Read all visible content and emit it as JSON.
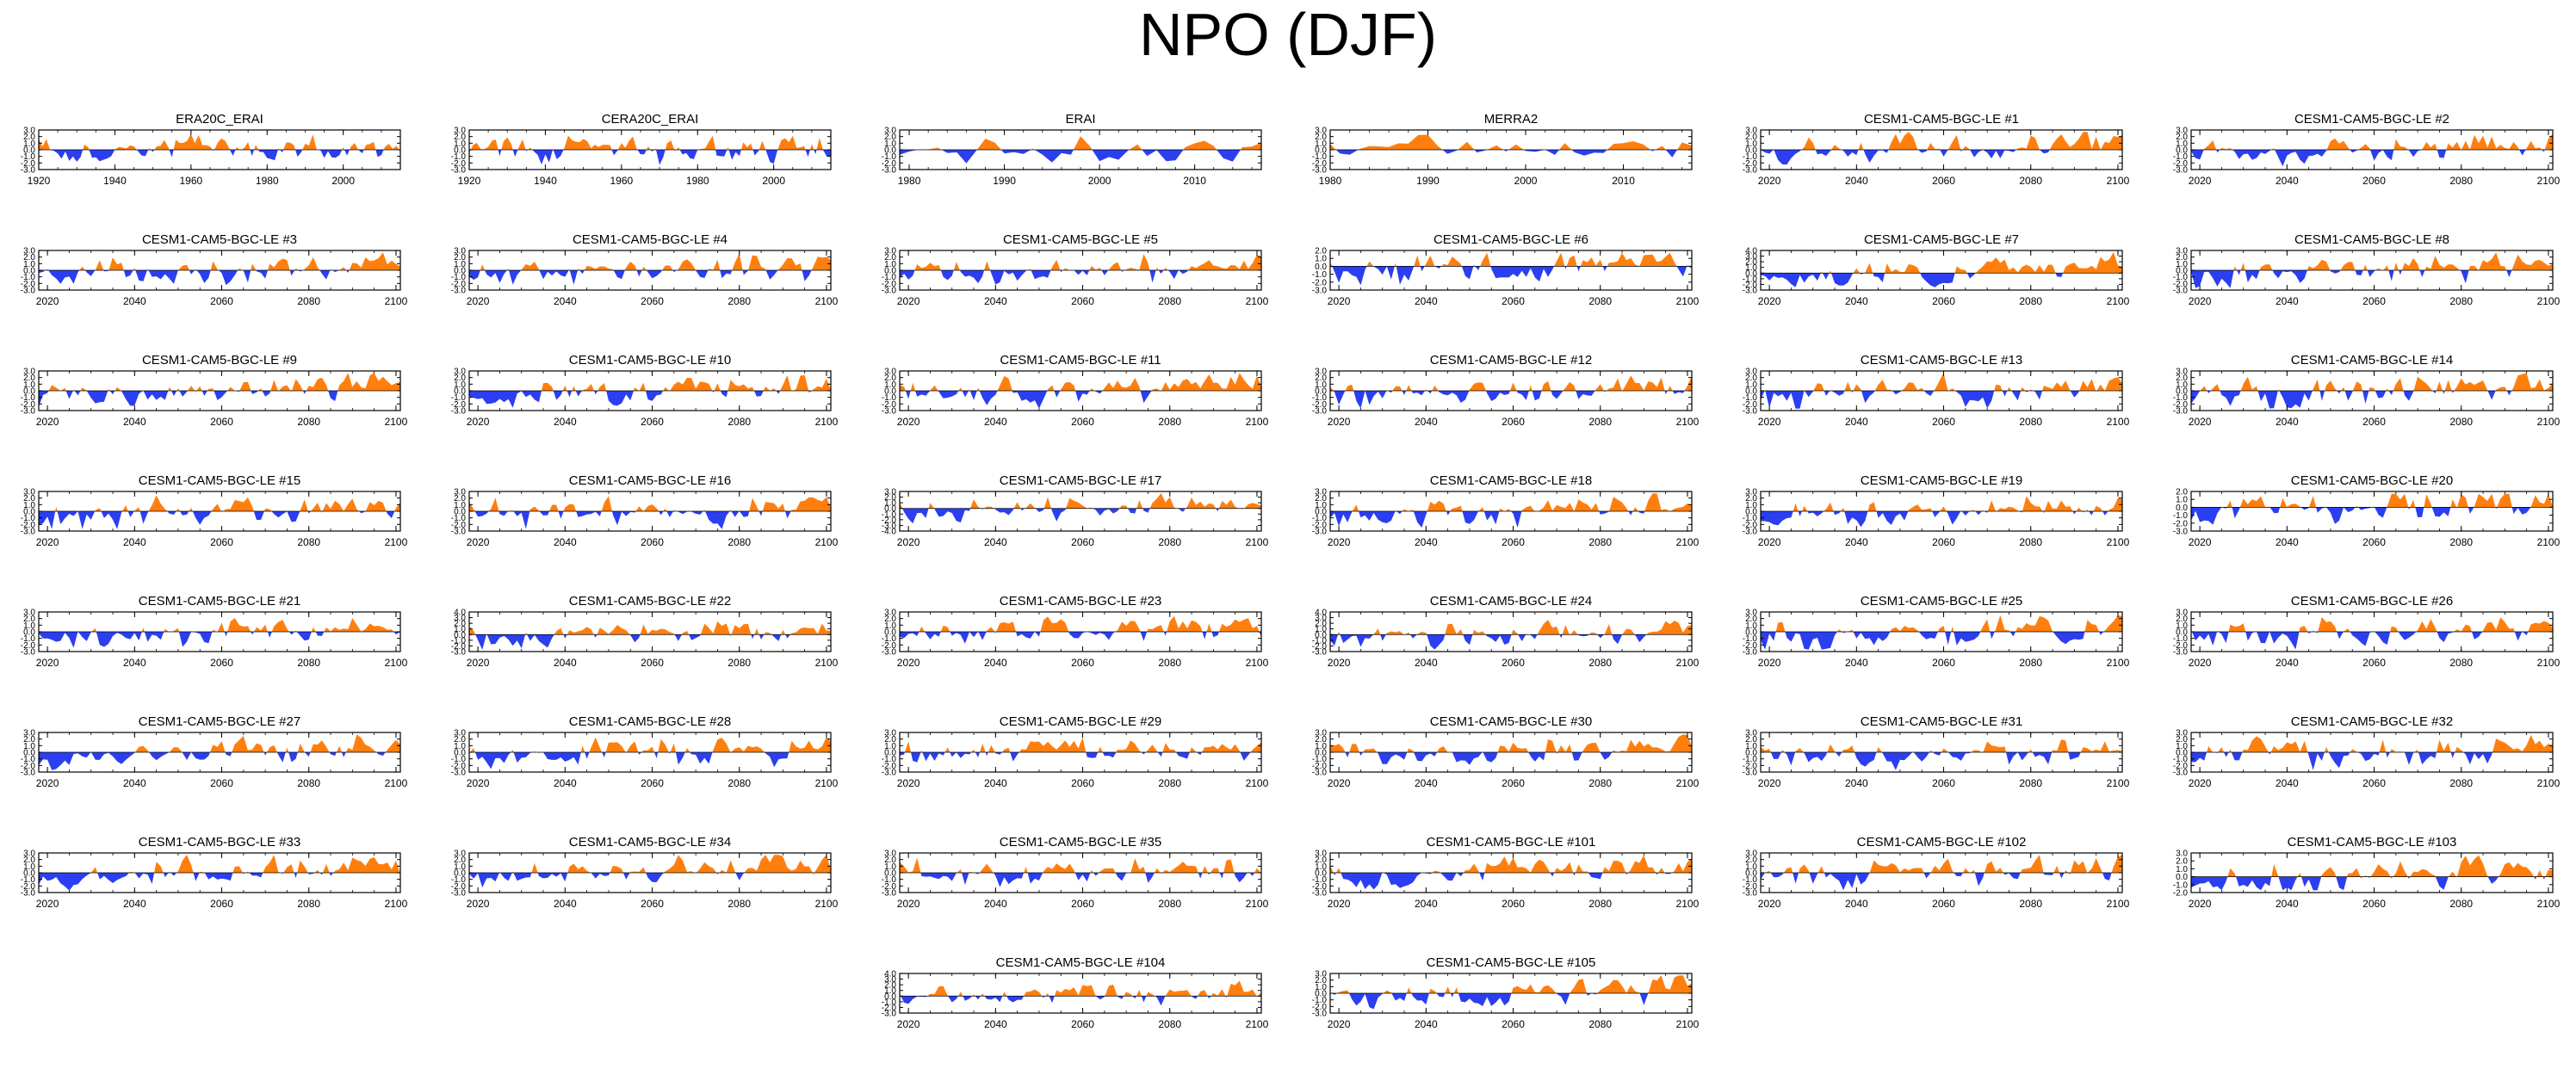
{
  "title": "NPO (DJF)",
  "colors": {
    "positive": "#ff7f0e",
    "negative": "#2b3ff0",
    "frame": "#000000"
  },
  "chart_data": [
    {
      "type": "area",
      "title": "ERA20C_ERAI",
      "xlim": [
        1920,
        2015
      ],
      "xticks": [
        1920,
        1940,
        1960,
        1980,
        2000
      ],
      "ylim": [
        -3.0,
        3.0
      ],
      "yticks": [
        "-3.0",
        "-2.0",
        "-1.0",
        "0.0",
        "1.0",
        "2.0",
        "3.0"
      ],
      "seed": 101,
      "trend": 0.0
    },
    {
      "type": "area",
      "title": "CERA20C_ERAI",
      "xlim": [
        1920,
        2015
      ],
      "xticks": [
        1920,
        1940,
        1960,
        1980,
        2000
      ],
      "ylim": [
        -3.0,
        3.0
      ],
      "yticks": [
        "-3.0",
        "-2.0",
        "-1.0",
        "0.0",
        "1.0",
        "2.0",
        "3.0"
      ],
      "seed": 102,
      "trend": 0.0
    },
    {
      "type": "area",
      "title": "ERAI",
      "xlim": [
        1979,
        2017
      ],
      "xticks": [
        1980,
        1990,
        2000,
        2010
      ],
      "ylim": [
        -3.0,
        3.0
      ],
      "yticks": [
        "-3.0",
        "-2.0",
        "-1.0",
        "0.0",
        "1.0",
        "2.0",
        "3.0"
      ],
      "seed": 103,
      "trend": 0.0
    },
    {
      "type": "area",
      "title": "MERRA2",
      "xlim": [
        1980,
        2017
      ],
      "xticks": [
        1980,
        1990,
        2000,
        2010
      ],
      "ylim": [
        -3.0,
        3.0
      ],
      "yticks": [
        "-3.0",
        "-2.0",
        "-1.0",
        "0.0",
        "1.0",
        "2.0",
        "3.0"
      ],
      "seed": 104,
      "trend": 0.0
    },
    {
      "type": "area",
      "title": "CESM1-CAM5-BGC-LE #1",
      "xlim": [
        2018,
        2101
      ],
      "xticks": [
        2020,
        2040,
        2060,
        2080,
        2100
      ],
      "ylim": [
        -3.0,
        3.0
      ],
      "yticks": [
        "-3.0",
        "-2.0",
        "-1.0",
        "0.0",
        "1.0",
        "2.0",
        "3.0"
      ],
      "seed": 1,
      "trend": 0.6
    },
    {
      "type": "area",
      "title": "CESM1-CAM5-BGC-LE #2",
      "xlim": [
        2018,
        2101
      ],
      "xticks": [
        2020,
        2040,
        2060,
        2080,
        2100
      ],
      "ylim": [
        -3.0,
        3.0
      ],
      "yticks": [
        "-3.0",
        "-2.0",
        "-1.0",
        "0.0",
        "1.0",
        "2.0",
        "3.0"
      ],
      "seed": 2,
      "trend": 0.5
    },
    {
      "type": "area",
      "title": "CESM1-CAM5-BGC-LE #3",
      "xlim": [
        2018,
        2101
      ],
      "xticks": [
        2020,
        2040,
        2060,
        2080,
        2100
      ],
      "ylim": [
        -3.0,
        3.0
      ],
      "yticks": [
        "-3.0",
        "-2.0",
        "-1.0",
        "0.0",
        "1.0",
        "2.0",
        "3.0"
      ],
      "seed": 3,
      "trend": 0.4
    },
    {
      "type": "area",
      "title": "CESM1-CAM5-BGC-LE #4",
      "xlim": [
        2018,
        2101
      ],
      "xticks": [
        2020,
        2040,
        2060,
        2080,
        2100
      ],
      "ylim": [
        -3.0,
        3.0
      ],
      "yticks": [
        "-3.0",
        "-2.0",
        "-1.0",
        "0.0",
        "1.0",
        "2.0",
        "3.0"
      ],
      "seed": 4,
      "trend": 0.6
    },
    {
      "type": "area",
      "title": "CESM1-CAM5-BGC-LE #5",
      "xlim": [
        2018,
        2101
      ],
      "xticks": [
        2020,
        2040,
        2060,
        2080,
        2100
      ],
      "ylim": [
        -3.0,
        3.0
      ],
      "yticks": [
        "-3.0",
        "-2.0",
        "-1.0",
        "0.0",
        "1.0",
        "2.0",
        "3.0"
      ],
      "seed": 5,
      "trend": 0.6
    },
    {
      "type": "area",
      "title": "CESM1-CAM5-BGC-LE #6",
      "xlim": [
        2018,
        2101
      ],
      "xticks": [
        2020,
        2040,
        2060,
        2080,
        2100
      ],
      "ylim": [
        -3.0,
        2.0
      ],
      "yticks": [
        "-3.0",
        "-2.0",
        "-1.0",
        "0.0",
        "1.0",
        "2.0"
      ],
      "seed": 6,
      "trend": 0.5
    },
    {
      "type": "area",
      "title": "CESM1-CAM5-BGC-LE #7",
      "xlim": [
        2018,
        2101
      ],
      "xticks": [
        2020,
        2040,
        2060,
        2080,
        2100
      ],
      "ylim": [
        -3.0,
        4.0
      ],
      "yticks": [
        "-3.0",
        "-2.0",
        "-1.0",
        "0.0",
        "1.0",
        "2.0",
        "3.0",
        "4.0"
      ],
      "seed": 7,
      "trend": 1.1
    },
    {
      "type": "area",
      "title": "CESM1-CAM5-BGC-LE #8",
      "xlim": [
        2018,
        2101
      ],
      "xticks": [
        2020,
        2040,
        2060,
        2080,
        2100
      ],
      "ylim": [
        -3.0,
        3.0
      ],
      "yticks": [
        "-3.0",
        "-2.0",
        "-1.0",
        "0.0",
        "1.0",
        "2.0",
        "3.0"
      ],
      "seed": 8,
      "trend": 0.7
    },
    {
      "type": "area",
      "title": "CESM1-CAM5-BGC-LE #9",
      "xlim": [
        2018,
        2101
      ],
      "xticks": [
        2020,
        2040,
        2060,
        2080,
        2100
      ],
      "ylim": [
        -3.0,
        3.0
      ],
      "yticks": [
        "-3.0",
        "-2.0",
        "-1.0",
        "0.0",
        "1.0",
        "2.0",
        "3.0"
      ],
      "seed": 9,
      "trend": 0.6
    },
    {
      "type": "area",
      "title": "CESM1-CAM5-BGC-LE #10",
      "xlim": [
        2018,
        2101
      ],
      "xticks": [
        2020,
        2040,
        2060,
        2080,
        2100
      ],
      "ylim": [
        -3.0,
        3.0
      ],
      "yticks": [
        "-3.0",
        "-2.0",
        "-1.0",
        "0.0",
        "1.0",
        "2.0",
        "3.0"
      ],
      "seed": 10,
      "trend": 0.7
    },
    {
      "type": "area",
      "title": "CESM1-CAM5-BGC-LE #11",
      "xlim": [
        2018,
        2101
      ],
      "xticks": [
        2020,
        2040,
        2060,
        2080,
        2100
      ],
      "ylim": [
        -3.0,
        3.0
      ],
      "yticks": [
        "-3.0",
        "-2.0",
        "-1.0",
        "0.0",
        "1.0",
        "2.0",
        "3.0"
      ],
      "seed": 11,
      "trend": 0.6
    },
    {
      "type": "area",
      "title": "CESM1-CAM5-BGC-LE #12",
      "xlim": [
        2018,
        2101
      ],
      "xticks": [
        2020,
        2040,
        2060,
        2080,
        2100
      ],
      "ylim": [
        -3.0,
        3.0
      ],
      "yticks": [
        "-3.0",
        "-2.0",
        "-1.0",
        "0.0",
        "1.0",
        "2.0",
        "3.0"
      ],
      "seed": 12,
      "trend": 0.5
    },
    {
      "type": "area",
      "title": "CESM1-CAM5-BGC-LE #13",
      "xlim": [
        2018,
        2101
      ],
      "xticks": [
        2020,
        2040,
        2060,
        2080,
        2100
      ],
      "ylim": [
        -3.0,
        3.0
      ],
      "yticks": [
        "-3.0",
        "-2.0",
        "-1.0",
        "0.0",
        "1.0",
        "2.0",
        "3.0"
      ],
      "seed": 13,
      "trend": 0.4
    },
    {
      "type": "area",
      "title": "CESM1-CAM5-BGC-LE #14",
      "xlim": [
        2018,
        2101
      ],
      "xticks": [
        2020,
        2040,
        2060,
        2080,
        2100
      ],
      "ylim": [
        -3.0,
        3.0
      ],
      "yticks": [
        "-3.0",
        "-2.0",
        "-1.0",
        "0.0",
        "1.0",
        "2.0",
        "3.0"
      ],
      "seed": 14,
      "trend": 0.6
    },
    {
      "type": "area",
      "title": "CESM1-CAM5-BGC-LE #15",
      "xlim": [
        2018,
        2101
      ],
      "xticks": [
        2020,
        2040,
        2060,
        2080,
        2100
      ],
      "ylim": [
        -3.0,
        3.0
      ],
      "yticks": [
        "-3.0",
        "-2.0",
        "-1.0",
        "0.0",
        "1.0",
        "2.0",
        "3.0"
      ],
      "seed": 15,
      "trend": 0.4
    },
    {
      "type": "area",
      "title": "CESM1-CAM5-BGC-LE #16",
      "xlim": [
        2018,
        2101
      ],
      "xticks": [
        2020,
        2040,
        2060,
        2080,
        2100
      ],
      "ylim": [
        -3.0,
        3.0
      ],
      "yticks": [
        "-3.0",
        "-2.0",
        "-1.0",
        "0.0",
        "1.0",
        "2.0",
        "3.0"
      ],
      "seed": 16,
      "trend": 0.5
    },
    {
      "type": "area",
      "title": "CESM1-CAM5-BGC-LE #17",
      "xlim": [
        2018,
        2101
      ],
      "xticks": [
        2020,
        2040,
        2060,
        2080,
        2100
      ],
      "ylim": [
        -4.0,
        3.0
      ],
      "yticks": [
        "-4.0",
        "-3.0",
        "-2.0",
        "-1.0",
        "0.0",
        "1.0",
        "2.0",
        "3.0"
      ],
      "seed": 17,
      "trend": 0.5
    },
    {
      "type": "area",
      "title": "CESM1-CAM5-BGC-LE #18",
      "xlim": [
        2018,
        2101
      ],
      "xticks": [
        2020,
        2040,
        2060,
        2080,
        2100
      ],
      "ylim": [
        -3.0,
        3.0
      ],
      "yticks": [
        "-3.0",
        "-2.0",
        "-1.0",
        "0.0",
        "1.0",
        "2.0",
        "3.0"
      ],
      "seed": 18,
      "trend": 0.4
    },
    {
      "type": "area",
      "title": "CESM1-CAM5-BGC-LE #19",
      "xlim": [
        2018,
        2101
      ],
      "xticks": [
        2020,
        2040,
        2060,
        2080,
        2100
      ],
      "ylim": [
        -3.0,
        3.0
      ],
      "yticks": [
        "-3.0",
        "-2.0",
        "-1.0",
        "0.0",
        "1.0",
        "2.0",
        "3.0"
      ],
      "seed": 19,
      "trend": 0.6
    },
    {
      "type": "area",
      "title": "CESM1-CAM5-BGC-LE #20",
      "xlim": [
        2018,
        2101
      ],
      "xticks": [
        2020,
        2040,
        2060,
        2080,
        2100
      ],
      "ylim": [
        -3.0,
        2.0
      ],
      "yticks": [
        "-3.0",
        "-2.0",
        "-1.0",
        "0.0",
        "1.0",
        "2.0"
      ],
      "seed": 20,
      "trend": 0.5
    },
    {
      "type": "area",
      "title": "CESM1-CAM5-BGC-LE #21",
      "xlim": [
        2018,
        2101
      ],
      "xticks": [
        2020,
        2040,
        2060,
        2080,
        2100
      ],
      "ylim": [
        -3.0,
        3.0
      ],
      "yticks": [
        "-3.0",
        "-2.0",
        "-1.0",
        "0.0",
        "1.0",
        "2.0",
        "3.0"
      ],
      "seed": 21,
      "trend": 0.7
    },
    {
      "type": "area",
      "title": "CESM1-CAM5-BGC-LE #22",
      "xlim": [
        2018,
        2101
      ],
      "xticks": [
        2020,
        2040,
        2060,
        2080,
        2100
      ],
      "ylim": [
        -3.0,
        4.0
      ],
      "yticks": [
        "-3.0",
        "-2.0",
        "-1.0",
        "0.0",
        "1.0",
        "2.0",
        "3.0",
        "4.0"
      ],
      "seed": 22,
      "trend": 0.6
    },
    {
      "type": "area",
      "title": "CESM1-CAM5-BGC-LE #23",
      "xlim": [
        2018,
        2101
      ],
      "xticks": [
        2020,
        2040,
        2060,
        2080,
        2100
      ],
      "ylim": [
        -3.0,
        3.0
      ],
      "yticks": [
        "-3.0",
        "-2.0",
        "-1.0",
        "0.0",
        "1.0",
        "2.0",
        "3.0"
      ],
      "seed": 23,
      "trend": 0.6
    },
    {
      "type": "area",
      "title": "CESM1-CAM5-BGC-LE #24",
      "xlim": [
        2018,
        2101
      ],
      "xticks": [
        2020,
        2040,
        2060,
        2080,
        2100
      ],
      "ylim": [
        -3.0,
        4.0
      ],
      "yticks": [
        "-3.0",
        "-2.0",
        "-1.0",
        "0.0",
        "1.0",
        "2.0",
        "3.0",
        "4.0"
      ],
      "seed": 24,
      "trend": 0.6
    },
    {
      "type": "area",
      "title": "CESM1-CAM5-BGC-LE #25",
      "xlim": [
        2018,
        2101
      ],
      "xticks": [
        2020,
        2040,
        2060,
        2080,
        2100
      ],
      "ylim": [
        -3.0,
        3.0
      ],
      "yticks": [
        "-3.0",
        "-2.0",
        "-1.0",
        "0.0",
        "1.0",
        "2.0",
        "3.0"
      ],
      "seed": 25,
      "trend": 0.5
    },
    {
      "type": "area",
      "title": "CESM1-CAM5-BGC-LE #26",
      "xlim": [
        2018,
        2101
      ],
      "xticks": [
        2020,
        2040,
        2060,
        2080,
        2100
      ],
      "ylim": [
        -3.0,
        3.0
      ],
      "yticks": [
        "-3.0",
        "-2.0",
        "-1.0",
        "0.0",
        "1.0",
        "2.0",
        "3.0"
      ],
      "seed": 26,
      "trend": 0.6
    },
    {
      "type": "area",
      "title": "CESM1-CAM5-BGC-LE #27",
      "xlim": [
        2018,
        2101
      ],
      "xticks": [
        2020,
        2040,
        2060,
        2080,
        2100
      ],
      "ylim": [
        -3.0,
        3.0
      ],
      "yticks": [
        "-3.0",
        "-2.0",
        "-1.0",
        "0.0",
        "1.0",
        "2.0",
        "3.0"
      ],
      "seed": 27,
      "trend": 0.6
    },
    {
      "type": "area",
      "title": "CESM1-CAM5-BGC-LE #28",
      "xlim": [
        2018,
        2101
      ],
      "xticks": [
        2020,
        2040,
        2060,
        2080,
        2100
      ],
      "ylim": [
        -3.0,
        3.0
      ],
      "yticks": [
        "-3.0",
        "-2.0",
        "-1.0",
        "0.0",
        "1.0",
        "2.0",
        "3.0"
      ],
      "seed": 28,
      "trend": 0.5
    },
    {
      "type": "area",
      "title": "CESM1-CAM5-BGC-LE #29",
      "xlim": [
        2018,
        2101
      ],
      "xticks": [
        2020,
        2040,
        2060,
        2080,
        2100
      ],
      "ylim": [
        -3.0,
        3.0
      ],
      "yticks": [
        "-3.0",
        "-2.0",
        "-1.0",
        "0.0",
        "1.0",
        "2.0",
        "3.0"
      ],
      "seed": 29,
      "trend": 0.5
    },
    {
      "type": "area",
      "title": "CESM1-CAM5-BGC-LE #30",
      "xlim": [
        2018,
        2101
      ],
      "xticks": [
        2020,
        2040,
        2060,
        2080,
        2100
      ],
      "ylim": [
        -3.0,
        3.0
      ],
      "yticks": [
        "-3.0",
        "-2.0",
        "-1.0",
        "0.0",
        "1.0",
        "2.0",
        "3.0"
      ],
      "seed": 30,
      "trend": 0.7
    },
    {
      "type": "area",
      "title": "CESM1-CAM5-BGC-LE #31",
      "xlim": [
        2018,
        2101
      ],
      "xticks": [
        2020,
        2040,
        2060,
        2080,
        2100
      ],
      "ylim": [
        -3.0,
        3.0
      ],
      "yticks": [
        "-3.0",
        "-2.0",
        "-1.0",
        "0.0",
        "1.0",
        "2.0",
        "3.0"
      ],
      "seed": 31,
      "trend": 0.5
    },
    {
      "type": "area",
      "title": "CESM1-CAM5-BGC-LE #32",
      "xlim": [
        2018,
        2101
      ],
      "xticks": [
        2020,
        2040,
        2060,
        2080,
        2100
      ],
      "ylim": [
        -3.0,
        3.0
      ],
      "yticks": [
        "-3.0",
        "-2.0",
        "-1.0",
        "0.0",
        "1.0",
        "2.0",
        "3.0"
      ],
      "seed": 32,
      "trend": 0.6
    },
    {
      "type": "area",
      "title": "CESM1-CAM5-BGC-LE #33",
      "xlim": [
        2018,
        2101
      ],
      "xticks": [
        2020,
        2040,
        2060,
        2080,
        2100
      ],
      "ylim": [
        -3.0,
        3.0
      ],
      "yticks": [
        "-3.0",
        "-2.0",
        "-1.0",
        "0.0",
        "1.0",
        "2.0",
        "3.0"
      ],
      "seed": 33,
      "trend": 0.6
    },
    {
      "type": "area",
      "title": "CESM1-CAM5-BGC-LE #34",
      "xlim": [
        2018,
        2101
      ],
      "xticks": [
        2020,
        2040,
        2060,
        2080,
        2100
      ],
      "ylim": [
        -3.0,
        3.0
      ],
      "yticks": [
        "-3.0",
        "-2.0",
        "-1.0",
        "0.0",
        "1.0",
        "2.0",
        "3.0"
      ],
      "seed": 34,
      "trend": 0.6
    },
    {
      "type": "area",
      "title": "CESM1-CAM5-BGC-LE #35",
      "xlim": [
        2018,
        2101
      ],
      "xticks": [
        2020,
        2040,
        2060,
        2080,
        2100
      ],
      "ylim": [
        -3.0,
        3.0
      ],
      "yticks": [
        "-3.0",
        "-2.0",
        "-1.0",
        "0.0",
        "1.0",
        "2.0",
        "3.0"
      ],
      "seed": 35,
      "trend": 0.4
    },
    {
      "type": "area",
      "title": "CESM1-CAM5-BGC-LE #101",
      "xlim": [
        2018,
        2101
      ],
      "xticks": [
        2020,
        2040,
        2060,
        2080,
        2100
      ],
      "ylim": [
        -3.0,
        3.0
      ],
      "yticks": [
        "-3.0",
        "-2.0",
        "-1.0",
        "0.0",
        "1.0",
        "2.0",
        "3.0"
      ],
      "seed": 101,
      "trend": 0.7
    },
    {
      "type": "area",
      "title": "CESM1-CAM5-BGC-LE #102",
      "xlim": [
        2018,
        2101
      ],
      "xticks": [
        2020,
        2040,
        2060,
        2080,
        2100
      ],
      "ylim": [
        -3.0,
        3.0
      ],
      "yticks": [
        "-3.0",
        "-2.0",
        "-1.0",
        "0.0",
        "1.0",
        "2.0",
        "3.0"
      ],
      "seed": 102,
      "trend": 0.6
    },
    {
      "type": "area",
      "title": "CESM1-CAM5-BGC-LE #103",
      "xlim": [
        2018,
        2101
      ],
      "xticks": [
        2020,
        2040,
        2060,
        2080,
        2100
      ],
      "ylim": [
        -2.0,
        3.0
      ],
      "yticks": [
        "-2.0",
        "-1.0",
        "0.0",
        "1.0",
        "2.0",
        "3.0"
      ],
      "seed": 103,
      "trend": 0.7
    },
    {
      "type": "area",
      "title": "CESM1-CAM5-BGC-LE #104",
      "xlim": [
        2018,
        2101
      ],
      "xticks": [
        2020,
        2040,
        2060,
        2080,
        2100
      ],
      "ylim": [
        -3.0,
        4.0
      ],
      "yticks": [
        "-3.0",
        "-2.0",
        "-1.0",
        "0.0",
        "1.0",
        "2.0",
        "3.0",
        "4.0"
      ],
      "seed": 104,
      "trend": 0.5
    },
    {
      "type": "area",
      "title": "CESM1-CAM5-BGC-LE #105",
      "xlim": [
        2018,
        2101
      ],
      "xticks": [
        2020,
        2040,
        2060,
        2080,
        2100
      ],
      "ylim": [
        -3.0,
        3.0
      ],
      "yticks": [
        "-3.0",
        "-2.0",
        "-1.0",
        "0.0",
        "1.0",
        "2.0",
        "3.0"
      ],
      "seed": 105,
      "trend": 0.5
    }
  ]
}
